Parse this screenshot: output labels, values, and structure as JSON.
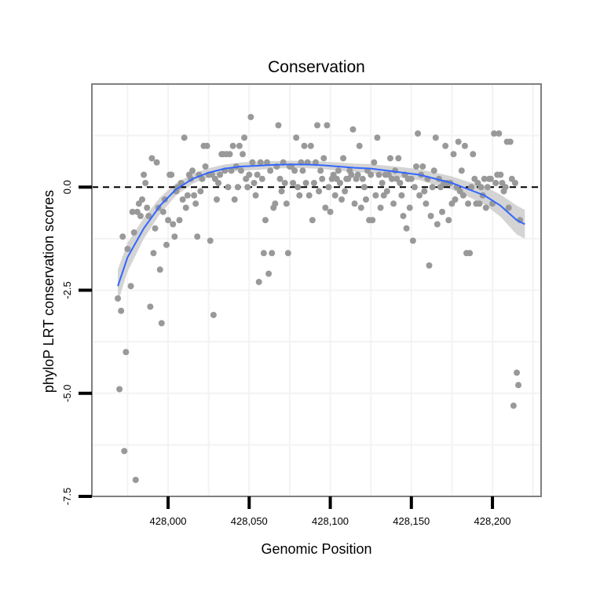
{
  "chart_data": {
    "type": "scatter",
    "title": "Conservation",
    "xlabel": "Genomic Position",
    "ylabel": "phyloP LRT conservation scores",
    "xlim": [
      427953,
      428230
    ],
    "ylim": [
      -7.5,
      2.5
    ],
    "x_ticks": [
      428000,
      428050,
      428100,
      428150,
      428200
    ],
    "x_tick_labels": [
      "428,000",
      "428,050",
      "428,100",
      "428,150",
      "428,200"
    ],
    "y_ticks": [
      -7.5,
      -5.0,
      -2.5,
      0.0
    ],
    "y_tick_labels": [
      "-7.5",
      "-5.0",
      "-2.5",
      "0.0"
    ],
    "reference_line_y": 0,
    "grid": true,
    "colors": {
      "points": "#999999",
      "smooth_line": "#3366ff",
      "confidence_band": "#cccccc",
      "reference_line": "#000000",
      "panel_border": "#808080",
      "grid": "#f3f3f3"
    },
    "points": [
      [
        427969,
        -2.7
      ],
      [
        427970,
        -4.9
      ],
      [
        427971,
        -3.0
      ],
      [
        427972,
        -1.2
      ],
      [
        427973,
        -6.4
      ],
      [
        427974,
        -4.0
      ],
      [
        427975,
        -1.5
      ],
      [
        427977,
        -2.4
      ],
      [
        427978,
        -0.6
      ],
      [
        427979,
        -1.1
      ],
      [
        427980,
        -7.1
      ],
      [
        427981,
        -0.6
      ],
      [
        427982,
        -0.4
      ],
      [
        427983,
        -0.7
      ],
      [
        427984,
        -0.3
      ],
      [
        427985,
        0.3
      ],
      [
        427986,
        0.1
      ],
      [
        427987,
        -0.5
      ],
      [
        427988,
        -0.7
      ],
      [
        427989,
        -2.9
      ],
      [
        427990,
        0.7
      ],
      [
        427991,
        -1.6
      ],
      [
        427992,
        -1.0
      ],
      [
        427993,
        0.6
      ],
      [
        427994,
        -0.5
      ],
      [
        427995,
        -2.0
      ],
      [
        427996,
        -3.3
      ],
      [
        427997,
        -0.6
      ],
      [
        427998,
        -0.3
      ],
      [
        427999,
        -1.4
      ],
      [
        428000,
        -0.8
      ],
      [
        428001,
        0.3
      ],
      [
        428002,
        0.3
      ],
      [
        428003,
        -0.9
      ],
      [
        428004,
        -1.2
      ],
      [
        428005,
        -0.1
      ],
      [
        428006,
        0.0
      ],
      [
        428007,
        -0.8
      ],
      [
        428008,
        0.1
      ],
      [
        428009,
        -0.3
      ],
      [
        428010,
        1.2
      ],
      [
        428011,
        -0.5
      ],
      [
        428012,
        -0.2
      ],
      [
        428013,
        0.3
      ],
      [
        428014,
        0.2
      ],
      [
        428015,
        0.4
      ],
      [
        428016,
        -0.2
      ],
      [
        428017,
        -0.4
      ],
      [
        428018,
        -1.2
      ],
      [
        428019,
        0.3
      ],
      [
        428020,
        -0.1
      ],
      [
        428021,
        0.2
      ],
      [
        428022,
        1.0
      ],
      [
        428023,
        0.5
      ],
      [
        428024,
        1.0
      ],
      [
        428025,
        0.3
      ],
      [
        428026,
        -1.3
      ],
      [
        428027,
        0.3
      ],
      [
        428028,
        -3.1
      ],
      [
        428029,
        0.2
      ],
      [
        428030,
        -0.3
      ],
      [
        428031,
        0.1
      ],
      [
        428032,
        0.3
      ],
      [
        428033,
        0.8
      ],
      [
        428034,
        0.8
      ],
      [
        428035,
        0.4
      ],
      [
        428036,
        0.8
      ],
      [
        428037,
        0.0
      ],
      [
        428038,
        0.8
      ],
      [
        428039,
        0.4
      ],
      [
        428040,
        1.0
      ],
      [
        428041,
        -0.3
      ],
      [
        428042,
        0.5
      ],
      [
        428043,
        0.0
      ],
      [
        428044,
        1.0
      ],
      [
        428045,
        0.4
      ],
      [
        428046,
        0.8
      ],
      [
        428047,
        1.2
      ],
      [
        428048,
        0.2
      ],
      [
        428049,
        0.0
      ],
      [
        428050,
        0.3
      ],
      [
        428051,
        1.7
      ],
      [
        428052,
        0.6
      ],
      [
        428053,
        0.1
      ],
      [
        428054,
        -0.2
      ],
      [
        428055,
        0.3
      ],
      [
        428056,
        -2.3
      ],
      [
        428057,
        0.6
      ],
      [
        428058,
        0.2
      ],
      [
        428059,
        -1.6
      ],
      [
        428060,
        -0.8
      ],
      [
        428061,
        0.6
      ],
      [
        428062,
        -2.1
      ],
      [
        428063,
        0.4
      ],
      [
        428064,
        -1.6
      ],
      [
        428065,
        -0.5
      ],
      [
        428066,
        -0.4
      ],
      [
        428067,
        0.5
      ],
      [
        428068,
        1.5
      ],
      [
        428069,
        0.2
      ],
      [
        428070,
        -0.1
      ],
      [
        428071,
        0.6
      ],
      [
        428072,
        0.1
      ],
      [
        428073,
        -0.4
      ],
      [
        428074,
        -1.6
      ],
      [
        428075,
        0.5
      ],
      [
        428076,
        0.5
      ],
      [
        428077,
        0.1
      ],
      [
        428078,
        0.4
      ],
      [
        428079,
        1.2
      ],
      [
        428080,
        0.0
      ],
      [
        428081,
        -0.2
      ],
      [
        428082,
        0.6
      ],
      [
        428083,
        0.4
      ],
      [
        428084,
        1.0
      ],
      [
        428085,
        0.1
      ],
      [
        428086,
        0.6
      ],
      [
        428087,
        -0.2
      ],
      [
        428088,
        1.0
      ],
      [
        428089,
        -0.8
      ],
      [
        428090,
        0.1
      ],
      [
        428091,
        0.6
      ],
      [
        428092,
        1.5
      ],
      [
        428093,
        -0.1
      ],
      [
        428094,
        0.4
      ],
      [
        428095,
        0.2
      ],
      [
        428096,
        0.7
      ],
      [
        428097,
        -0.5
      ],
      [
        428098,
        1.5
      ],
      [
        428099,
        0.0
      ],
      [
        428100,
        -0.6
      ],
      [
        428101,
        0.2
      ],
      [
        428102,
        0.3
      ],
      [
        428103,
        -0.2
      ],
      [
        428104,
        0.2
      ],
      [
        428105,
        0.4
      ],
      [
        428106,
        0.1
      ],
      [
        428107,
        -0.3
      ],
      [
        428108,
        0.7
      ],
      [
        428109,
        -0.1
      ],
      [
        428110,
        0.2
      ],
      [
        428111,
        0.2
      ],
      [
        428112,
        0.4
      ],
      [
        428113,
        0.3
      ],
      [
        428114,
        1.4
      ],
      [
        428115,
        -0.4
      ],
      [
        428116,
        0.2
      ],
      [
        428117,
        0.3
      ],
      [
        428118,
        1.0
      ],
      [
        428119,
        -0.5
      ],
      [
        428120,
        0.2
      ],
      [
        428121,
        0.0
      ],
      [
        428122,
        -0.3
      ],
      [
        428123,
        0.4
      ],
      [
        428124,
        -0.8
      ],
      [
        428125,
        0.3
      ],
      [
        428126,
        -0.8
      ],
      [
        428127,
        0.6
      ],
      [
        428128,
        -0.2
      ],
      [
        428129,
        1.2
      ],
      [
        428130,
        0.3
      ],
      [
        428131,
        -0.5
      ],
      [
        428132,
        0.1
      ],
      [
        428133,
        -0.2
      ],
      [
        428134,
        0.3
      ],
      [
        428135,
        -0.1
      ],
      [
        428136,
        0.3
      ],
      [
        428137,
        0.7
      ],
      [
        428138,
        0.2
      ],
      [
        428139,
        -0.4
      ],
      [
        428140,
        0.4
      ],
      [
        428141,
        0.2
      ],
      [
        428142,
        0.7
      ],
      [
        428143,
        0.1
      ],
      [
        428144,
        -0.2
      ],
      [
        428145,
        -0.7
      ],
      [
        428146,
        0.3
      ],
      [
        428147,
        -1.0
      ],
      [
        428148,
        0.2
      ],
      [
        428149,
        -0.5
      ],
      [
        428150,
        0.2
      ],
      [
        428151,
        -1.3
      ],
      [
        428152,
        0.0
      ],
      [
        428153,
        0.5
      ],
      [
        428154,
        1.3
      ],
      [
        428155,
        -0.2
      ],
      [
        428156,
        0.3
      ],
      [
        428157,
        0.5
      ],
      [
        428158,
        -0.1
      ],
      [
        428159,
        -0.4
      ],
      [
        428160,
        0.2
      ],
      [
        428161,
        -1.9
      ],
      [
        428162,
        -0.7
      ],
      [
        428163,
        0.0
      ],
      [
        428164,
        0.4
      ],
      [
        428165,
        1.2
      ],
      [
        428166,
        -0.9
      ],
      [
        428167,
        0.2
      ],
      [
        428168,
        0.0
      ],
      [
        428169,
        -0.6
      ],
      [
        428170,
        0.1
      ],
      [
        428171,
        1.0
      ],
      [
        428172,
        0.1
      ],
      [
        428173,
        -0.8
      ],
      [
        428174,
        0.1
      ],
      [
        428175,
        -0.4
      ],
      [
        428176,
        0.8
      ],
      [
        428177,
        -0.3
      ],
      [
        428178,
        0.0
      ],
      [
        428179,
        1.1
      ],
      [
        428180,
        -0.1
      ],
      [
        428181,
        0.4
      ],
      [
        428182,
        -0.2
      ],
      [
        428183,
        1.0
      ],
      [
        428184,
        -1.6
      ],
      [
        428185,
        -0.4
      ],
      [
        428186,
        -1.6
      ],
      [
        428187,
        0.0
      ],
      [
        428188,
        0.8
      ],
      [
        428189,
        0.2
      ],
      [
        428190,
        -0.4
      ],
      [
        428191,
        0.1
      ],
      [
        428192,
        -0.4
      ],
      [
        428193,
        0.0
      ],
      [
        428194,
        -0.2
      ],
      [
        428195,
        0.2
      ],
      [
        428196,
        -0.5
      ],
      [
        428197,
        0.0
      ],
      [
        428198,
        0.2
      ],
      [
        428199,
        0.2
      ],
      [
        428200,
        -0.4
      ],
      [
        428201,
        1.3
      ],
      [
        428202,
        0.1
      ],
      [
        428203,
        0.3
      ],
      [
        428204,
        1.3
      ],
      [
        428205,
        0.3
      ],
      [
        428206,
        0.1
      ],
      [
        428207,
        -0.1
      ],
      [
        428208,
        0.0
      ],
      [
        428209,
        1.1
      ],
      [
        428210,
        -0.5
      ],
      [
        428211,
        1.1
      ],
      [
        428212,
        0.2
      ],
      [
        428213,
        -5.3
      ],
      [
        428214,
        0.1
      ],
      [
        428215,
        -4.5
      ],
      [
        428216,
        -4.8
      ],
      [
        428217,
        -0.8
      ]
    ],
    "smooth_line": [
      [
        427969,
        -2.4
      ],
      [
        427975,
        -1.7
      ],
      [
        427985,
        -1.0
      ],
      [
        427995,
        -0.45
      ],
      [
        428005,
        -0.05
      ],
      [
        428015,
        0.2
      ],
      [
        428025,
        0.35
      ],
      [
        428035,
        0.45
      ],
      [
        428045,
        0.5
      ],
      [
        428055,
        0.52
      ],
      [
        428065,
        0.54
      ],
      [
        428075,
        0.55
      ],
      [
        428085,
        0.55
      ],
      [
        428095,
        0.53
      ],
      [
        428105,
        0.5
      ],
      [
        428115,
        0.47
      ],
      [
        428125,
        0.45
      ],
      [
        428135,
        0.4
      ],
      [
        428145,
        0.35
      ],
      [
        428155,
        0.3
      ],
      [
        428165,
        0.2
      ],
      [
        428175,
        0.1
      ],
      [
        428185,
        -0.05
      ],
      [
        428195,
        -0.2
      ],
      [
        428205,
        -0.45
      ],
      [
        428215,
        -0.8
      ],
      [
        428220,
        -0.9
      ]
    ],
    "band_upper": [
      [
        427969,
        -2.0
      ],
      [
        427975,
        -1.35
      ],
      [
        427985,
        -0.75
      ],
      [
        427995,
        -0.25
      ],
      [
        428005,
        0.1
      ],
      [
        428015,
        0.32
      ],
      [
        428025,
        0.46
      ],
      [
        428035,
        0.55
      ],
      [
        428045,
        0.6
      ],
      [
        428055,
        0.62
      ],
      [
        428065,
        0.63
      ],
      [
        428075,
        0.64
      ],
      [
        428085,
        0.64
      ],
      [
        428095,
        0.62
      ],
      [
        428105,
        0.6
      ],
      [
        428115,
        0.57
      ],
      [
        428125,
        0.56
      ],
      [
        428135,
        0.52
      ],
      [
        428145,
        0.48
      ],
      [
        428155,
        0.43
      ],
      [
        428165,
        0.35
      ],
      [
        428175,
        0.26
      ],
      [
        428185,
        0.13
      ],
      [
        428195,
        0.02
      ],
      [
        428205,
        -0.18
      ],
      [
        428215,
        -0.45
      ],
      [
        428220,
        -0.55
      ]
    ],
    "band_lower": [
      [
        427969,
        -2.8
      ],
      [
        427975,
        -2.05
      ],
      [
        427985,
        -1.25
      ],
      [
        427995,
        -0.65
      ],
      [
        428005,
        -0.2
      ],
      [
        428015,
        0.08
      ],
      [
        428025,
        0.24
      ],
      [
        428035,
        0.35
      ],
      [
        428045,
        0.4
      ],
      [
        428055,
        0.42
      ],
      [
        428065,
        0.45
      ],
      [
        428075,
        0.46
      ],
      [
        428085,
        0.46
      ],
      [
        428095,
        0.44
      ],
      [
        428105,
        0.4
      ],
      [
        428115,
        0.37
      ],
      [
        428125,
        0.34
      ],
      [
        428135,
        0.28
      ],
      [
        428145,
        0.22
      ],
      [
        428155,
        0.17
      ],
      [
        428165,
        0.05
      ],
      [
        428175,
        -0.06
      ],
      [
        428185,
        -0.23
      ],
      [
        428195,
        -0.42
      ],
      [
        428205,
        -0.72
      ],
      [
        428215,
        -1.15
      ],
      [
        428220,
        -1.25
      ]
    ]
  }
}
